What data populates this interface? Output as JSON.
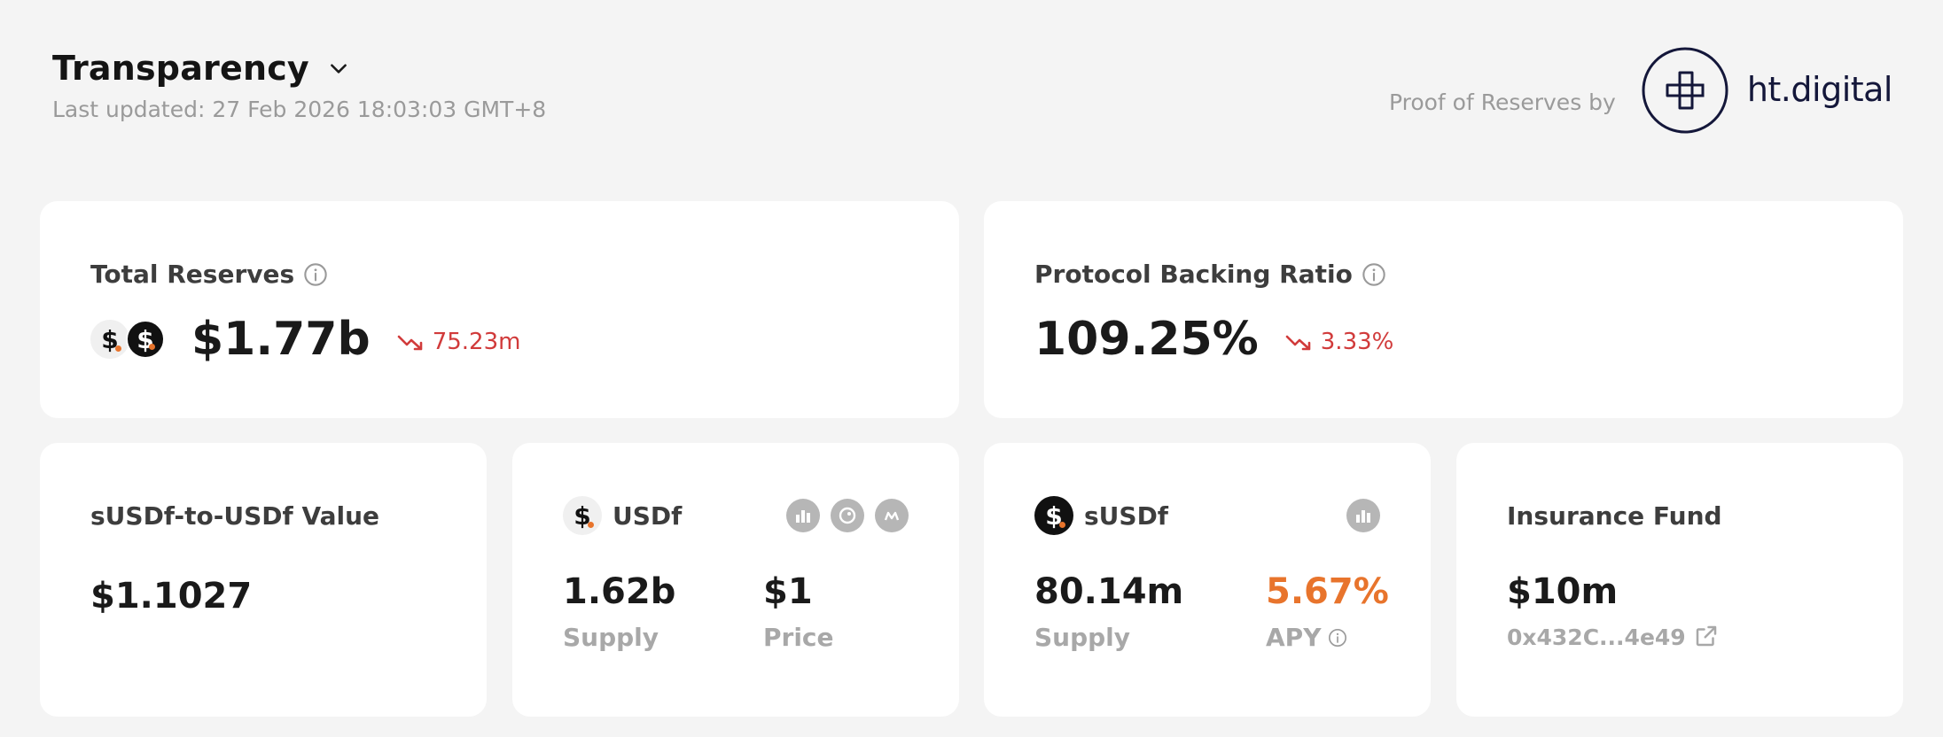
{
  "header": {
    "title": "Transparency",
    "last_updated": "Last updated: 27 Feb 2026 18:03:03 GMT+8",
    "proof_label": "Proof of Reserves by",
    "brand_name": "ht.digital"
  },
  "total_reserves": {
    "label": "Total Reserves",
    "value": "$1.77b",
    "change": "75.23m",
    "change_direction": "down"
  },
  "backing_ratio": {
    "label": "Protocol Backing Ratio",
    "value": "109.25%",
    "change": "3.33%",
    "change_direction": "down"
  },
  "susdf_value": {
    "label": "sUSDf-to-USDf Value",
    "value": "$1.1027"
  },
  "usdf": {
    "name": "USDf",
    "supply_value": "1.62b",
    "supply_label": "Supply",
    "price_value": "$1",
    "price_label": "Price",
    "links": [
      "chart-icon",
      "gecko-icon",
      "coinmarketcap-icon"
    ]
  },
  "susdf": {
    "name": "sUSDf",
    "supply_value": "80.14m",
    "supply_label": "Supply",
    "apy_value": "5.67%",
    "apy_label": "APY",
    "links": [
      "chart-icon"
    ]
  },
  "insurance": {
    "label": "Insurance Fund",
    "value": "$10m",
    "address": "0x432C...4e49"
  },
  "colors": {
    "background": "#f4f4f4",
    "card": "#ffffff",
    "negative": "#d13b3b",
    "apy_accent": "#e8742c",
    "brand": "#14173a"
  }
}
